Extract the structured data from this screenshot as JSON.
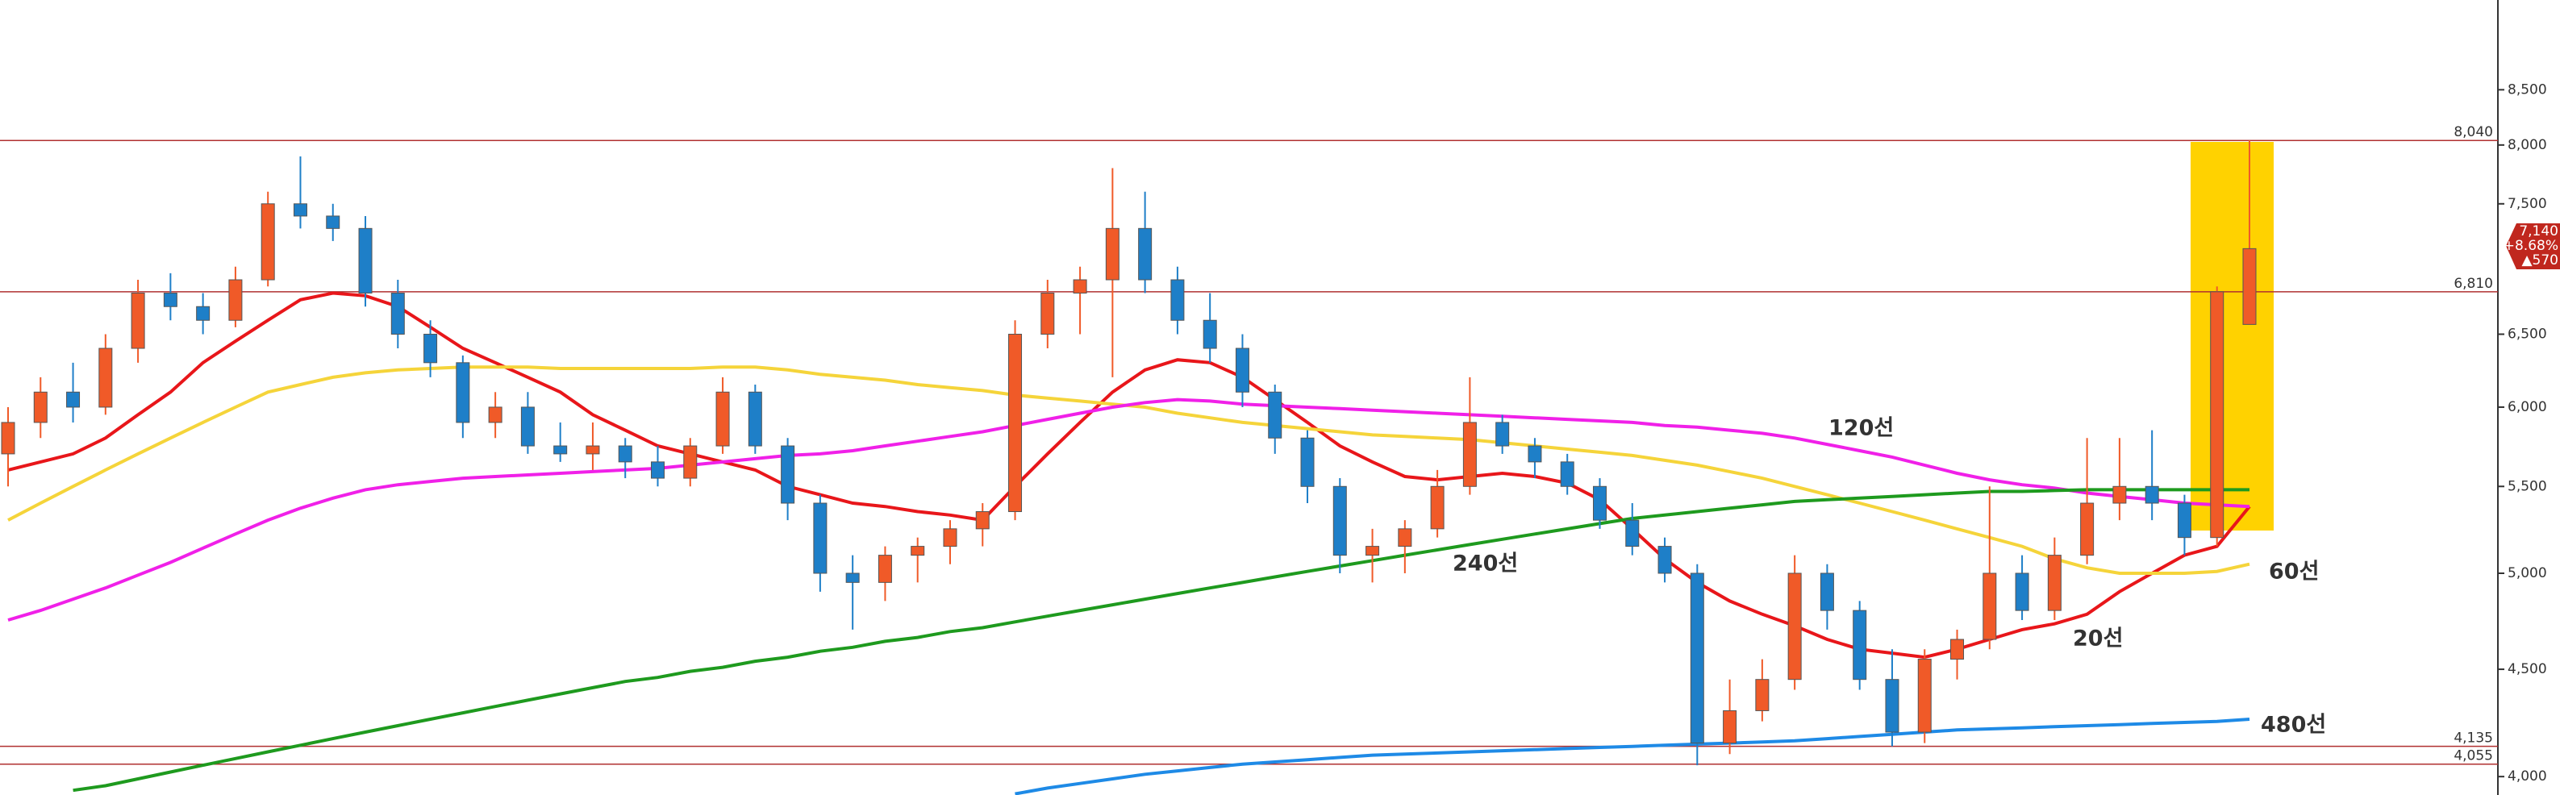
{
  "chart_data": {
    "type": "candlestick",
    "log_scale": true,
    "up_color": "#f05a28",
    "down_color": "#1e7fc8",
    "open": [
      5700,
      5900,
      6100,
      6000,
      6400,
      6800,
      6700,
      6600,
      6900,
      7500,
      7400,
      7300,
      6800,
      6500,
      6300,
      5900,
      6000,
      5750,
      5700,
      5750,
      5650,
      5550,
      5750,
      6100,
      5750,
      5400,
      5000,
      4950,
      5100,
      5150,
      5250,
      5350,
      6500,
      6800,
      6900,
      7300,
      6900,
      6600,
      6400,
      6100,
      5800,
      5500,
      5100,
      5150,
      5250,
      5500,
      5900,
      5750,
      5650,
      5500,
      5300,
      5150,
      5000,
      4150,
      4300,
      4450,
      5000,
      4800,
      4450,
      4200,
      4550,
      4650,
      5000,
      4800,
      5100,
      5400,
      5500,
      5400,
      5200,
      6570
    ],
    "high": [
      6000,
      6200,
      6300,
      6500,
      6900,
      6950,
      6800,
      7000,
      7600,
      7900,
      7500,
      7400,
      6900,
      6600,
      6350,
      6100,
      6100,
      5900,
      5900,
      5800,
      5750,
      5800,
      6200,
      6150,
      5800,
      5450,
      5100,
      5150,
      5200,
      5300,
      5400,
      6600,
      6900,
      7000,
      7800,
      7600,
      7000,
      6800,
      6500,
      6150,
      5850,
      5550,
      5250,
      5300,
      5600,
      6200,
      5950,
      5800,
      5700,
      5550,
      5400,
      5200,
      5050,
      4450,
      4550,
      5100,
      5050,
      4850,
      4600,
      4600,
      4700,
      5500,
      5100,
      5200,
      5800,
      5800,
      5850,
      5450,
      6850,
      8040
    ],
    "low": [
      5500,
      5800,
      5900,
      5950,
      6300,
      6600,
      6500,
      6550,
      6850,
      7300,
      7200,
      6700,
      6400,
      6200,
      5800,
      5800,
      5700,
      5650,
      5600,
      5550,
      5500,
      5500,
      5700,
      5700,
      5300,
      4900,
      4700,
      4850,
      4950,
      5050,
      5150,
      5300,
      6400,
      6500,
      6200,
      6800,
      6500,
      6300,
      6000,
      5700,
      5400,
      5000,
      4950,
      5000,
      5200,
      5450,
      5700,
      5550,
      5450,
      5250,
      5100,
      4950,
      4050,
      4100,
      4250,
      4400,
      4700,
      4400,
      4135,
      4150,
      4450,
      4600,
      4750,
      4750,
      5050,
      5300,
      5300,
      5100,
      5150,
      6570
    ],
    "close": [
      5900,
      6100,
      6000,
      6400,
      6800,
      6700,
      6600,
      6900,
      7500,
      7400,
      7300,
      6800,
      6500,
      6300,
      5900,
      6000,
      5750,
      5700,
      5750,
      5650,
      5550,
      5750,
      6100,
      5750,
      5400,
      5000,
      4950,
      5100,
      5150,
      5250,
      5350,
      6500,
      6800,
      6900,
      7300,
      6900,
      6600,
      6400,
      6100,
      5800,
      5500,
      5100,
      5150,
      5250,
      5500,
      5900,
      5750,
      5650,
      5500,
      5300,
      5150,
      5000,
      4150,
      4300,
      4450,
      5000,
      4800,
      4450,
      4200,
      4550,
      4650,
      5000,
      4800,
      5100,
      5400,
      5500,
      5400,
      5200,
      6810,
      7140
    ],
    "series": [
      {
        "name": "20선",
        "color": "#e8161a",
        "values": [
          5600,
          5650,
          5700,
          5800,
          5950,
          6100,
          6300,
          6450,
          6600,
          6750,
          6800,
          6780,
          6700,
          6550,
          6400,
          6300,
          6200,
          6100,
          5950,
          5850,
          5750,
          5700,
          5650,
          5600,
          5500,
          5450,
          5400,
          5380,
          5350,
          5330,
          5300,
          5500,
          5700,
          5900,
          6100,
          6250,
          6320,
          6300,
          6200,
          6050,
          5900,
          5750,
          5650,
          5560,
          5540,
          5560,
          5580,
          5560,
          5520,
          5420,
          5250,
          5080,
          4950,
          4850,
          4780,
          4720,
          4650,
          4600,
          4580,
          4560,
          4600,
          4650,
          4700,
          4730,
          4780,
          4900,
          5000,
          5100,
          5150,
          5380
        ]
      },
      {
        "name": "60선",
        "color": "#f5d43a",
        "values": [
          5300,
          5400,
          5500,
          5600,
          5700,
          5800,
          5900,
          6000,
          6100,
          6150,
          6200,
          6230,
          6250,
          6260,
          6270,
          6270,
          6270,
          6260,
          6260,
          6260,
          6260,
          6260,
          6270,
          6270,
          6250,
          6220,
          6200,
          6180,
          6150,
          6130,
          6110,
          6080,
          6060,
          6040,
          6020,
          6000,
          5960,
          5930,
          5900,
          5880,
          5860,
          5840,
          5820,
          5810,
          5800,
          5790,
          5770,
          5750,
          5730,
          5710,
          5690,
          5660,
          5630,
          5590,
          5550,
          5500,
          5450,
          5400,
          5350,
          5300,
          5250,
          5200,
          5150,
          5080,
          5030,
          5000,
          5000,
          5000,
          5010,
          5050
        ]
      },
      {
        "name": "120선",
        "color": "#f020e8",
        "values": [
          4750,
          4800,
          4860,
          4920,
          4990,
          5060,
          5140,
          5220,
          5300,
          5370,
          5430,
          5480,
          5510,
          5530,
          5550,
          5560,
          5570,
          5580,
          5590,
          5600,
          5610,
          5630,
          5650,
          5670,
          5690,
          5700,
          5720,
          5750,
          5780,
          5810,
          5840,
          5880,
          5920,
          5960,
          6000,
          6030,
          6050,
          6040,
          6020,
          6010,
          6000,
          5990,
          5980,
          5970,
          5960,
          5950,
          5940,
          5930,
          5920,
          5910,
          5900,
          5880,
          5870,
          5850,
          5830,
          5800,
          5760,
          5720,
          5680,
          5630,
          5580,
          5540,
          5510,
          5490,
          5460,
          5440,
          5420,
          5400,
          5390,
          5380
        ]
      },
      {
        "name": "240선",
        "color": "#1e9a1e",
        "values": [
          null,
          null,
          3940,
          3960,
          3990,
          4020,
          4050,
          4080,
          4110,
          4140,
          4170,
          4200,
          4230,
          4260,
          4290,
          4320,
          4350,
          4380,
          4410,
          4440,
          4460,
          4490,
          4510,
          4540,
          4560,
          4590,
          4610,
          4640,
          4660,
          4690,
          4710,
          4740,
          4770,
          4800,
          4830,
          4860,
          4890,
          4920,
          4950,
          4980,
          5010,
          5040,
          5070,
          5100,
          5130,
          5160,
          5190,
          5220,
          5250,
          5280,
          5310,
          5330,
          5350,
          5370,
          5390,
          5410,
          5420,
          5430,
          5440,
          5450,
          5460,
          5470,
          5470,
          5475,
          5480,
          5480,
          5480,
          5480,
          5480,
          5480
        ]
      },
      {
        "name": "480선",
        "color": "#1e8ae6",
        "values": [
          null,
          null,
          null,
          null,
          null,
          null,
          null,
          null,
          null,
          null,
          null,
          null,
          null,
          null,
          null,
          null,
          null,
          null,
          null,
          null,
          null,
          null,
          null,
          null,
          null,
          null,
          null,
          null,
          null,
          null,
          null,
          3925,
          3950,
          3970,
          3990,
          4010,
          4025,
          4040,
          4055,
          4065,
          4075,
          4085,
          4095,
          4100,
          4105,
          4110,
          4115,
          4120,
          4125,
          4130,
          4135,
          4140,
          4145,
          4150,
          4155,
          4160,
          4170,
          4180,
          4190,
          4200,
          4210,
          4215,
          4220,
          4225,
          4230,
          4235,
          4240,
          4245,
          4250,
          4260
        ]
      }
    ],
    "ylim": [
      3920,
      9380
    ],
    "yticks": [
      {
        "value": 4000,
        "label": "4,000"
      },
      {
        "value": 4500,
        "label": "4,500"
      },
      {
        "value": 5000,
        "label": "5,000"
      },
      {
        "value": 5500,
        "label": "5,500"
      },
      {
        "value": 6000,
        "label": "6,000"
      },
      {
        "value": 6500,
        "label": "6,500"
      },
      {
        "value": 7500,
        "label": "7,500"
      },
      {
        "value": 8000,
        "label": "8,000"
      },
      {
        "value": 8500,
        "label": "8,500"
      }
    ],
    "levels": [
      {
        "value": 8040,
        "label": "8,040"
      },
      {
        "value": 6810,
        "label": "6,810"
      },
      {
        "value": 4135,
        "label": "4,135"
      },
      {
        "value": 4055,
        "label": "4,055"
      }
    ],
    "price_tag": {
      "price": "7,140",
      "change": "+8.68%",
      "diff": "▲570"
    }
  }
}
